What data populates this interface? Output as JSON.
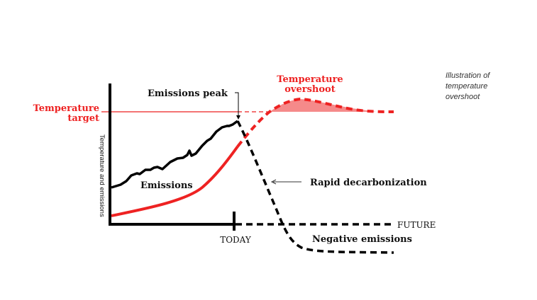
{
  "caption": [
    "Illustration of",
    "temperature",
    "overshoot"
  ],
  "labels": {
    "temperature_target": [
      "Temperature",
      "target"
    ],
    "temperature_overshoot": [
      "Temperature",
      "overshoot"
    ],
    "emissions_peak": "Emissions peak",
    "emissions": "Emissions",
    "rapid_decarbonization": "Rapid decarbonization",
    "negative_emissions": "Negative emissions",
    "today": "TODAY",
    "future": "FUTURE",
    "y_axis": "Temperature and emissions"
  },
  "colors": {
    "temperature": "#ee2222",
    "overshoot_fill": "#f58a8a",
    "emissions": "#000000"
  }
}
